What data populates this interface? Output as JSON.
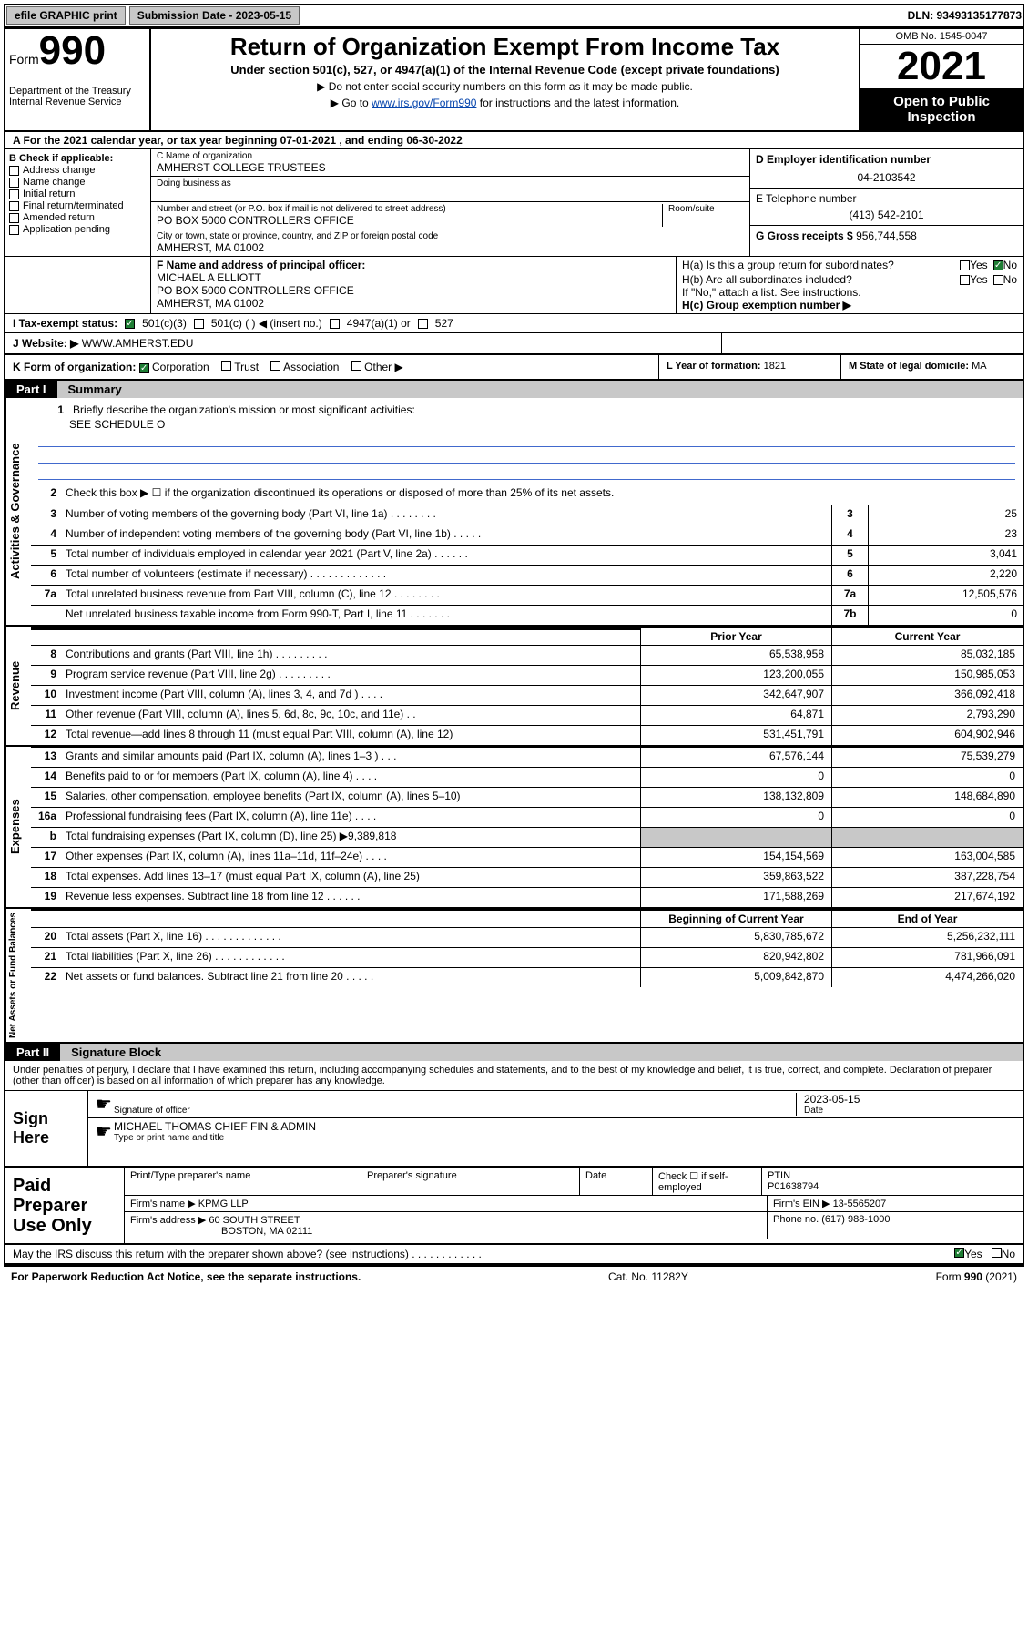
{
  "topbar": {
    "efile_label": "efile GRAPHIC print",
    "submission_label": "Submission Date - 2023-05-15",
    "dln": "DLN: 93493135177873"
  },
  "header": {
    "form_word": "Form",
    "form_no": "990",
    "dept": "Department of the Treasury",
    "irs": "Internal Revenue Service",
    "title": "Return of Organization Exempt From Income Tax",
    "subtitle": "Under section 501(c), 527, or 4947(a)(1) of the Internal Revenue Code (except private foundations)",
    "note1": "▶ Do not enter social security numbers on this form as it may be made public.",
    "note2_pre": "▶ Go to ",
    "note2_link": "www.irs.gov/Form990",
    "note2_post": " for instructions and the latest information.",
    "omb": "OMB No. 1545-0047",
    "year": "2021",
    "otp1": "Open to Public",
    "otp2": "Inspection"
  },
  "row_a": "A For the 2021 calendar year, or tax year beginning 07-01-2021  , and ending 06-30-2022",
  "section_b": {
    "label": "B Check if applicable:",
    "opts": [
      "Address change",
      "Name change",
      "Initial return",
      "Final return/terminated",
      "Amended return",
      "Application pending"
    ],
    "c_label": "C Name of organization",
    "c_name": "AMHERST COLLEGE TRUSTEES",
    "dba_label": "Doing business as",
    "addr_label": "Number and street (or P.O. box if mail is not delivered to street address)",
    "room_label": "Room/suite",
    "addr": "PO BOX 5000 CONTROLLERS OFFICE",
    "city_label": "City or town, state or province, country, and ZIP or foreign postal code",
    "city": "AMHERST, MA  01002",
    "d_label": "D Employer identification number",
    "d_ein": "04-2103542",
    "e_label": "E Telephone number",
    "e_phone": "(413) 542-2101",
    "g_label": "G Gross receipts $",
    "g_val": "956,744,558",
    "f_label": "F Name and address of principal officer:",
    "f_name": "MICHAEL A ELLIOTT",
    "f_addr1": "PO BOX 5000 CONTROLLERS OFFICE",
    "f_addr2": "AMHERST, MA  01002",
    "ha_label": "H(a)  Is this a group return for subordinates?",
    "hb_label": "H(b)  Are all subordinates included?",
    "hb_note": "If \"No,\" attach a list. See instructions.",
    "hc_label": "H(c)  Group exemption number ▶",
    "yes": "Yes",
    "no": "No"
  },
  "section_i": {
    "label": "I   Tax-exempt status:",
    "opt1": "501(c)(3)",
    "opt2": "501(c) (  ) ◀ (insert no.)",
    "opt3": "4947(a)(1) or",
    "opt4": "527"
  },
  "section_j": {
    "label": "J   Website: ▶",
    "val": "WWW.AMHERST.EDU"
  },
  "section_k": {
    "label": "K Form of organization:",
    "opts": [
      "Corporation",
      "Trust",
      "Association",
      "Other ▶"
    ],
    "l_label": "L Year of formation:",
    "l_val": "1821",
    "m_label": "M State of legal domicile:",
    "m_val": "MA"
  },
  "part1": {
    "header_part": "Part I",
    "header_title": "Summary",
    "tab_ag": "Activities & Governance",
    "tab_rev": "Revenue",
    "tab_exp": "Expenses",
    "tab_na": "Net Assets or Fund Balances",
    "l1_label": "Briefly describe the organization's mission or most significant activities:",
    "l1_val": "SEE SCHEDULE O",
    "l2_label": "Check this box ▶ ☐  if the organization discontinued its operations or disposed of more than 25% of its net assets.",
    "rows_single": [
      {
        "n": "3",
        "label": "Number of voting members of the governing body (Part VI, line 1a)  .   .   .   .   .   .   .   .",
        "box": "3",
        "val": "25"
      },
      {
        "n": "4",
        "label": "Number of independent voting members of the governing body (Part VI, line 1b)  .   .   .   .   .",
        "box": "4",
        "val": "23"
      },
      {
        "n": "5",
        "label": "Total number of individuals employed in calendar year 2021 (Part V, line 2a)  .   .   .   .   .   .",
        "box": "5",
        "val": "3,041"
      },
      {
        "n": "6",
        "label": "Total number of volunteers (estimate if necessary)  .   .   .   .   .   .   .   .   .   .   .   .   .",
        "box": "6",
        "val": "2,220"
      },
      {
        "n": "7a",
        "label": "Total unrelated business revenue from Part VIII, column (C), line 12  .   .   .   .   .   .   .   .",
        "box": "7a",
        "val": "12,505,576"
      },
      {
        "n": "",
        "label": "Net unrelated business taxable income from Form 990-T, Part I, line 11  .   .   .   .   .   .   .",
        "box": "7b",
        "val": "0"
      }
    ],
    "col_prior": "Prior Year",
    "col_current": "Current Year",
    "rows_rev": [
      {
        "n": "8",
        "label": "Contributions and grants (Part VIII, line 1h)  .   .   .   .   .   .   .   .   .",
        "p": "65,538,958",
        "c": "85,032,185"
      },
      {
        "n": "9",
        "label": "Program service revenue (Part VIII, line 2g)  .   .   .   .   .   .   .   .   .",
        "p": "123,200,055",
        "c": "150,985,053"
      },
      {
        "n": "10",
        "label": "Investment income (Part VIII, column (A), lines 3, 4, and 7d )  .   .   .   .",
        "p": "342,647,907",
        "c": "366,092,418"
      },
      {
        "n": "11",
        "label": "Other revenue (Part VIII, column (A), lines 5, 6d, 8c, 9c, 10c, and 11e)  .   .",
        "p": "64,871",
        "c": "2,793,290"
      },
      {
        "n": "12",
        "label": "Total revenue—add lines 8 through 11 (must equal Part VIII, column (A), line 12)",
        "p": "531,451,791",
        "c": "604,902,946"
      }
    ],
    "rows_exp": [
      {
        "n": "13",
        "label": "Grants and similar amounts paid (Part IX, column (A), lines 1–3 )  .   .   .",
        "p": "67,576,144",
        "c": "75,539,279"
      },
      {
        "n": "14",
        "label": "Benefits paid to or for members (Part IX, column (A), line 4)  .   .   .   .",
        "p": "0",
        "c": "0"
      },
      {
        "n": "15",
        "label": "Salaries, other compensation, employee benefits (Part IX, column (A), lines 5–10)",
        "p": "138,132,809",
        "c": "148,684,890"
      },
      {
        "n": "16a",
        "label": "Professional fundraising fees (Part IX, column (A), line 11e)  .   .   .   .",
        "p": "0",
        "c": "0"
      },
      {
        "n": "b",
        "label": "Total fundraising expenses (Part IX, column (D), line 25) ▶9,389,818",
        "p": "",
        "c": "",
        "shade": true
      },
      {
        "n": "17",
        "label": "Other expenses (Part IX, column (A), lines 11a–11d, 11f–24e)  .   .   .   .",
        "p": "154,154,569",
        "c": "163,004,585"
      },
      {
        "n": "18",
        "label": "Total expenses. Add lines 13–17 (must equal Part IX, column (A), line 25)",
        "p": "359,863,522",
        "c": "387,228,754"
      },
      {
        "n": "19",
        "label": "Revenue less expenses. Subtract line 18 from line 12  .   .   .   .   .   .",
        "p": "171,588,269",
        "c": "217,674,192"
      }
    ],
    "col_boy": "Beginning of Current Year",
    "col_eoy": "End of Year",
    "rows_na": [
      {
        "n": "20",
        "label": "Total assets (Part X, line 16)  .   .   .   .   .   .   .   .   .   .   .   .   .",
        "p": "5,830,785,672",
        "c": "5,256,232,111"
      },
      {
        "n": "21",
        "label": "Total liabilities (Part X, line 26)  .   .   .   .   .   .   .   .   .   .   .   .",
        "p": "820,942,802",
        "c": "781,966,091"
      },
      {
        "n": "22",
        "label": "Net assets or fund balances. Subtract line 21 from line 20  .   .   .   .   .",
        "p": "5,009,842,870",
        "c": "4,474,266,020"
      }
    ]
  },
  "part2": {
    "header_part": "Part II",
    "header_title": "Signature Block",
    "intro": "Under penalties of perjury, I declare that I have examined this return, including accompanying schedules and statements, and to the best of my knowledge and belief, it is true, correct, and complete. Declaration of preparer (other than officer) is based on all information of which preparer has any knowledge.",
    "sign_here": "Sign Here",
    "sig_date": "2023-05-15",
    "sig_officer_label": "Signature of officer",
    "sig_date_label": "Date",
    "officer_name": "MICHAEL THOMAS CHIEF FIN & ADMIN",
    "officer_label": "Type or print name and title",
    "paid_label": "Paid Preparer Use Only",
    "prep_name_label": "Print/Type preparer's name",
    "prep_sig_label": "Preparer's signature",
    "prep_date_label": "Date",
    "prep_check_label": "Check ☐ if self-employed",
    "ptin_label": "PTIN",
    "ptin": "P01638794",
    "firm_name_label": "Firm's name   ▶",
    "firm_name": "KPMG LLP",
    "firm_ein_label": "Firm's EIN ▶",
    "firm_ein": "13-5565207",
    "firm_addr_label": "Firm's address ▶",
    "firm_addr1": "60 SOUTH STREET",
    "firm_addr2": "BOSTON, MA  02111",
    "firm_phone_label": "Phone no.",
    "firm_phone": "(617) 988-1000",
    "discuss": "May the IRS discuss this return with the preparer shown above? (see instructions)  .   .   .   .   .   .   .   .   .   .   .   .",
    "yes": "Yes",
    "no": "No"
  },
  "footer": {
    "pra": "For Paperwork Reduction Act Notice, see the separate instructions.",
    "cat": "Cat. No. 11282Y",
    "form": "Form 990 (2021)"
  },
  "colors": {
    "link": "#0645ad",
    "shade": "#c8c8c8",
    "check_green": "#1e7e34",
    "rule_blue": "#4169cd"
  }
}
